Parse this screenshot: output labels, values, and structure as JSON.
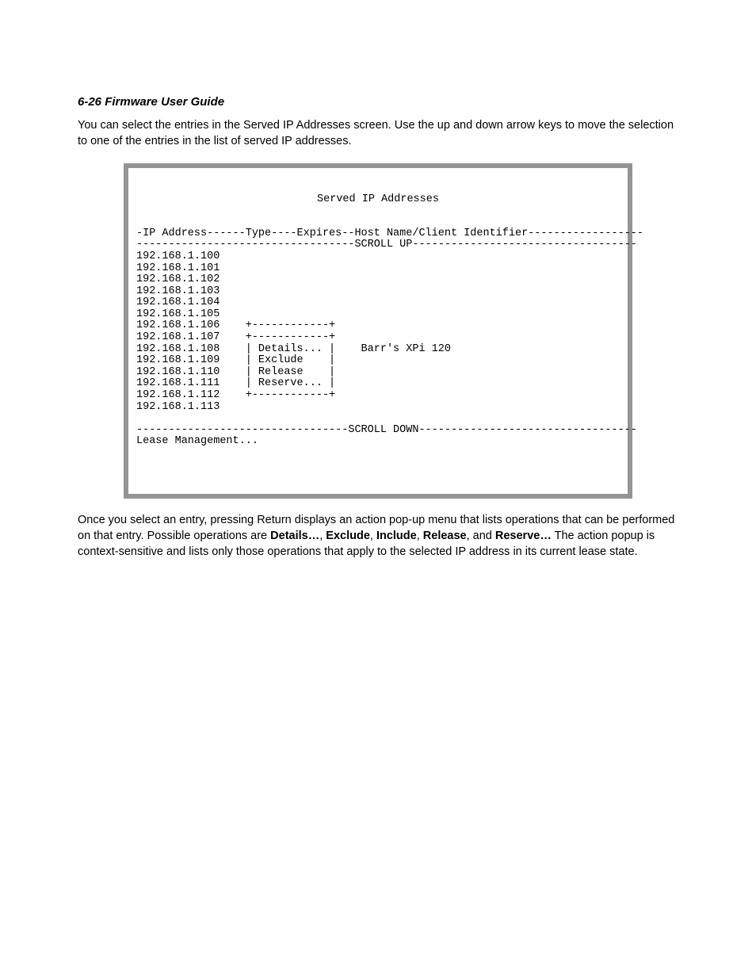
{
  "header": {
    "page_number": "6-26",
    "title": "Firmware User Guide"
  },
  "intro_text": "You can select the entries in the Served IP Addresses screen. Use the up and down arrow keys to move the selection to one of the entries in the list of served IP addresses.",
  "terminal": {
    "title": "Served IP Addresses",
    "header_row": "-IP Address------Type----Expires--Host Name/Client Identifier------------------",
    "scroll_up": "----------------------------------SCROLL UP-----------------------------------",
    "rows": [
      {
        "ip": "192.168.1.100",
        "menu": "",
        "host": ""
      },
      {
        "ip": "192.168.1.101",
        "menu": "",
        "host": ""
      },
      {
        "ip": "192.168.1.102",
        "menu": "",
        "host": ""
      },
      {
        "ip": "192.168.1.103",
        "menu": "",
        "host": ""
      },
      {
        "ip": "192.168.1.104",
        "menu": "",
        "host": ""
      },
      {
        "ip": "192.168.1.105",
        "menu": "",
        "host": ""
      },
      {
        "ip": "192.168.1.106",
        "menu": "+------------+",
        "host": ""
      },
      {
        "ip": "192.168.1.107",
        "menu": "+------------+",
        "host": ""
      },
      {
        "ip": "192.168.1.108",
        "menu": "| Details... |",
        "host": "Barr's XPi 120"
      },
      {
        "ip": "192.168.1.109",
        "menu": "| Exclude    |",
        "host": ""
      },
      {
        "ip": "192.168.1.110",
        "menu": "| Release    |",
        "host": ""
      },
      {
        "ip": "192.168.1.111",
        "menu": "| Reserve... |",
        "host": ""
      },
      {
        "ip": "192.168.1.112",
        "menu": "+------------+",
        "host": ""
      },
      {
        "ip": "192.168.1.113",
        "menu": "",
        "host": ""
      }
    ],
    "scroll_down": "---------------------------------SCROLL DOWN----------------------------------",
    "footer": "Lease Management...",
    "popup_items": [
      "Details...",
      "Exclude",
      "Release",
      "Reserve..."
    ]
  },
  "outro": {
    "p1a": "Once you select an entry, pressing Return displays an action pop-up menu that lists operations that can be performed on that entry. Possible operations are ",
    "b1": "Details…",
    "s1": ", ",
    "b2": "Exclude",
    "s2": ", ",
    "b3": "Include",
    "s3": ", ",
    "b4": "Release",
    "s4": ", and ",
    "b5": "Reserve…",
    "p1b": " The action popup is context-sensitive and lists only those operations that apply to the selected IP address in its current lease state."
  },
  "style": {
    "font_body": "Arial",
    "font_mono": "Courier New",
    "border_color": "#949494",
    "background": "#ffffff",
    "text_color": "#000000"
  }
}
